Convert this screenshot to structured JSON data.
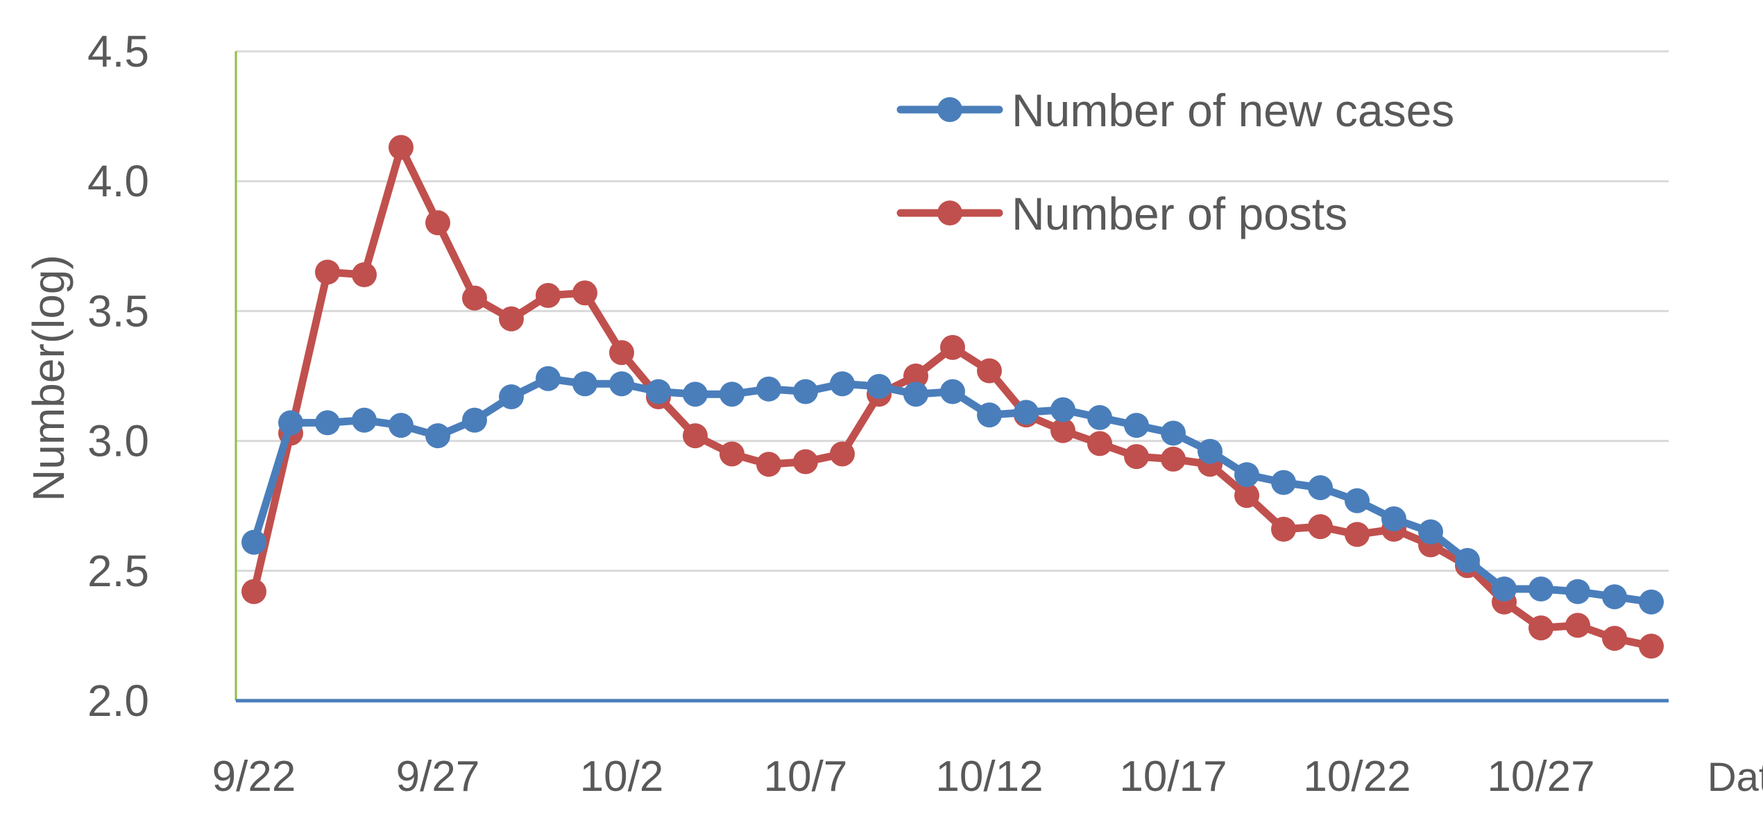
{
  "chart_data": {
    "type": "line",
    "title": "",
    "xlabel": "Date",
    "ylabel": "Number(log)",
    "ylim": [
      2.0,
      4.5
    ],
    "yticks": [
      "2.0",
      "2.5",
      "3.0",
      "3.5",
      "4.0",
      "4.5"
    ],
    "grid": "horizontal",
    "legend_position": "top-right",
    "x": [
      "9/22",
      "9/23",
      "9/24",
      "9/25",
      "9/26",
      "9/27",
      "9/28",
      "9/29",
      "9/30",
      "10/1",
      "10/2",
      "10/3",
      "10/4",
      "10/5",
      "10/6",
      "10/7",
      "10/8",
      "10/9",
      "10/10",
      "10/11",
      "10/12",
      "10/13",
      "10/14",
      "10/15",
      "10/16",
      "10/17",
      "10/18",
      "10/19",
      "10/20",
      "10/21",
      "10/22",
      "10/23",
      "10/24",
      "10/25",
      "10/26",
      "10/27",
      "10/28",
      "10/29",
      "10/30"
    ],
    "x_tick_labels": [
      "9/22",
      "9/27",
      "10/2",
      "10/7",
      "10/12",
      "10/17",
      "10/22",
      "10/27"
    ],
    "series": [
      {
        "name": "Number of new cases",
        "color": "#4a7ebb",
        "values": [
          2.61,
          3.07,
          3.07,
          3.08,
          3.06,
          3.02,
          3.08,
          3.17,
          3.24,
          3.22,
          3.22,
          3.19,
          3.18,
          3.18,
          3.2,
          3.19,
          3.22,
          3.21,
          3.18,
          3.19,
          3.1,
          3.11,
          3.12,
          3.09,
          3.06,
          3.03,
          2.96,
          2.87,
          2.84,
          2.82,
          2.77,
          2.7,
          2.65,
          2.54,
          2.43,
          2.43,
          2.42,
          2.4,
          2.38
        ]
      },
      {
        "name": "Number of posts",
        "color": "#c0504d",
        "values": [
          2.42,
          3.03,
          3.65,
          3.64,
          4.13,
          3.84,
          3.55,
          3.47,
          3.56,
          3.57,
          3.34,
          3.17,
          3.02,
          2.95,
          2.91,
          2.92,
          2.95,
          3.18,
          3.25,
          3.36,
          3.27,
          3.1,
          3.04,
          2.99,
          2.94,
          2.93,
          2.91,
          2.79,
          2.66,
          2.67,
          2.64,
          2.66,
          2.6,
          2.52,
          2.38,
          2.28,
          2.29,
          2.24,
          2.21
        ]
      }
    ]
  }
}
